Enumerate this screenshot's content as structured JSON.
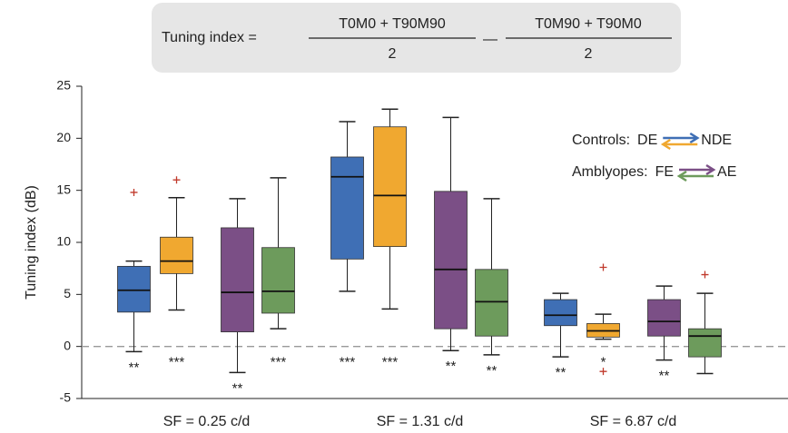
{
  "chart_data": {
    "type": "box",
    "ylabel": "Tuning index (dB)",
    "categories": [
      "SF = 0.25 c/d",
      "SF = 1.31 c/d",
      "SF = 6.87 c/d"
    ],
    "ylim": [
      -5,
      25
    ],
    "yticks": [
      -5,
      0,
      5,
      10,
      15,
      20,
      25
    ],
    "reference_line": 0,
    "outlier_color": "#c0392b",
    "formula": {
      "lhs": "Tuning index =",
      "num1": "T0M0 + T90M90",
      "den1": "2",
      "operator": "—",
      "num2": "T0M90 + T90M0",
      "den2": "2"
    },
    "legend": [
      {
        "label": "Controls:",
        "label_color": "#222222",
        "from": "DE",
        "to": "NDE",
        "series": [
          0,
          1
        ]
      },
      {
        "label": "Amblyopes:",
        "label_color": "#a0302e",
        "from": "FE",
        "to": "AE",
        "series": [
          2,
          3
        ]
      }
    ],
    "series": [
      {
        "color": "#3f6fb5",
        "min": [
          -0.5,
          5.3,
          -1.0
        ],
        "q1": [
          3.3,
          8.4,
          2.0
        ],
        "median": [
          5.4,
          16.3,
          3.0
        ],
        "q3": [
          7.7,
          18.2,
          4.5
        ],
        "max": [
          8.2,
          21.6,
          5.1
        ],
        "outliers": [
          [
            14.8
          ],
          [],
          []
        ],
        "stars": [
          "**",
          "***",
          "**"
        ]
      },
      {
        "color": "#f0a830",
        "min": [
          3.5,
          3.6,
          0.7
        ],
        "q1": [
          7.0,
          9.6,
          0.9
        ],
        "median": [
          8.2,
          14.5,
          1.5
        ],
        "q3": [
          10.5,
          21.1,
          2.2
        ],
        "max": [
          14.3,
          22.8,
          3.1
        ],
        "outliers": [
          [
            16.0
          ],
          [],
          [
            7.6,
            -2.4
          ]
        ],
        "stars": [
          "***",
          "***",
          "*"
        ]
      },
      {
        "color": "#7b4f86",
        "min": [
          -2.5,
          -0.4,
          -1.3
        ],
        "q1": [
          1.4,
          1.7,
          1.0
        ],
        "median": [
          5.2,
          7.4,
          2.4
        ],
        "q3": [
          11.4,
          14.9,
          4.5
        ],
        "max": [
          14.2,
          22.0,
          5.8
        ],
        "outliers": [
          [],
          [],
          []
        ],
        "stars": [
          "**",
          "**",
          "**"
        ]
      },
      {
        "color": "#6d9b5c",
        "min": [
          1.7,
          -0.8,
          -2.6
        ],
        "q1": [
          3.2,
          1.0,
          -1.0
        ],
        "median": [
          5.3,
          4.3,
          1.0
        ],
        "q3": [
          9.5,
          7.4,
          1.7
        ],
        "max": [
          16.2,
          14.2,
          5.1
        ],
        "outliers": [
          [],
          [],
          [
            6.9
          ]
        ],
        "stars": [
          "***",
          "**",
          null
        ]
      }
    ]
  }
}
